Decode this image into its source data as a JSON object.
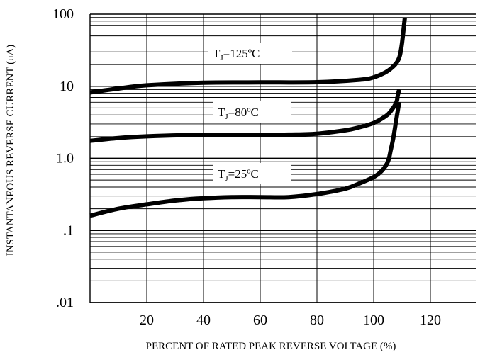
{
  "chart_data": {
    "type": "line",
    "title": "",
    "xlabel": "PERCENT OF RATED PEAK REVERSE VOLTAGE (%)",
    "ylabel": "INSTANTANEOUS REVERSE CURRENT (uA)",
    "x_ticks": [
      20,
      40,
      60,
      80,
      100,
      120
    ],
    "y_tick_labels": [
      {
        "value": 100,
        "label": "100"
      },
      {
        "value": 10,
        "label": "10"
      },
      {
        "value": 1,
        "label": "1.0"
      },
      {
        "value": 0.1,
        "label": ".1"
      },
      {
        "value": 0.01,
        "label": ".01"
      }
    ],
    "xlim": [
      0,
      135
    ],
    "ylim": [
      0.01,
      100
    ],
    "y_scale": "log",
    "grid": true,
    "series": [
      {
        "name": "TJ=125ºC",
        "label_main": "T",
        "label_sub": "J",
        "label_rest": "=125ºC",
        "x": [
          0,
          10,
          20,
          40,
          60,
          80,
          95,
          100,
          104,
          106,
          108,
          109,
          109.5,
          110,
          110.5,
          111
        ],
        "y": [
          8.2,
          9.3,
          10.3,
          11.2,
          11.3,
          11.4,
          12.3,
          13.3,
          15.5,
          17.5,
          21,
          25,
          30,
          40,
          60,
          90
        ]
      },
      {
        "name": "TJ=80ºC",
        "label_main": "T",
        "label_sub": "J",
        "label_rest": "=80ºC",
        "x": [
          0,
          10,
          20,
          40,
          60,
          70,
          80,
          90,
          95,
          100,
          104,
          106,
          108,
          108.5,
          109
        ],
        "y": [
          1.75,
          1.92,
          2.02,
          2.12,
          2.12,
          2.14,
          2.2,
          2.45,
          2.7,
          3.1,
          3.8,
          4.5,
          6.0,
          7.5,
          9.0
        ]
      },
      {
        "name": "TJ=25ºC",
        "label_main": "T",
        "label_sub": "J",
        "label_rest": "=25ºC",
        "x": [
          0,
          10,
          20,
          30,
          40,
          50,
          60,
          70,
          80,
          90,
          95,
          100,
          103,
          105,
          106,
          107,
          108,
          109
        ],
        "y": [
          0.16,
          0.2,
          0.23,
          0.26,
          0.28,
          0.29,
          0.29,
          0.29,
          0.32,
          0.38,
          0.45,
          0.55,
          0.68,
          0.9,
          1.3,
          2.0,
          3.5,
          6.0
        ]
      }
    ]
  }
}
